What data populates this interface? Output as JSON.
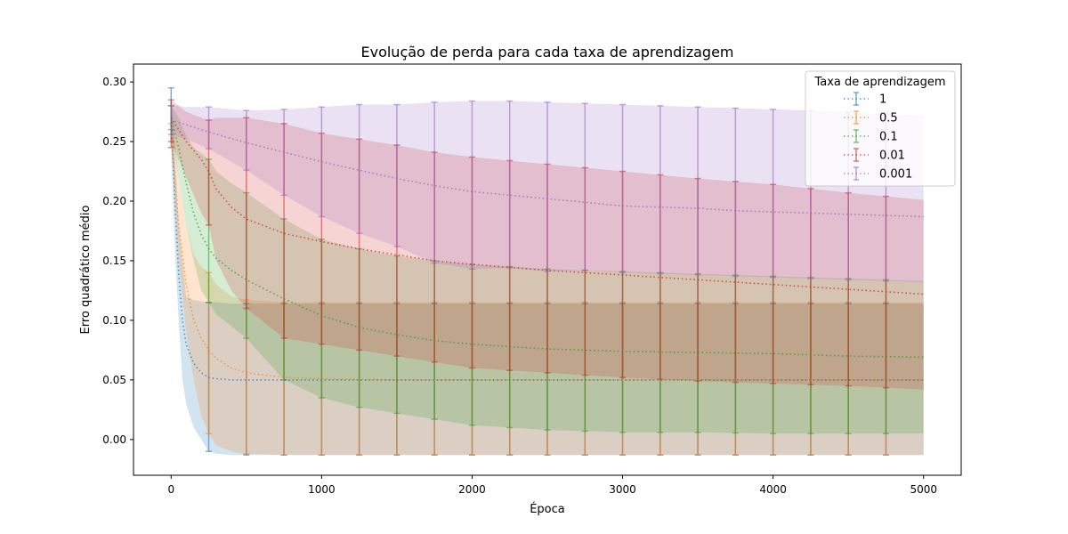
{
  "chart_data": {
    "type": "line",
    "title": "Evolução de perda para cada taxa de aprendizagem",
    "xlabel": "Época",
    "ylabel": "Erro quadrático médio",
    "xlim": [
      -250,
      5250
    ],
    "ylim": [
      -0.03,
      0.315
    ],
    "xticks": [
      0,
      1000,
      2000,
      3000,
      4000,
      5000
    ],
    "yticks": [
      0.0,
      0.05,
      0.1,
      0.15,
      0.2,
      0.25,
      0.3
    ],
    "ytick_labels": [
      "0.00",
      "0.05",
      "0.10",
      "0.15",
      "0.20",
      "0.25",
      "0.30"
    ],
    "grid": false,
    "legend": {
      "title": "Taxa de aprendizagem",
      "placement": "top-right"
    },
    "errorbar_x": [
      0,
      250,
      500,
      750,
      1000,
      1250,
      1500,
      1750,
      2000,
      2250,
      2500,
      2750,
      3000,
      3250,
      3500,
      3750,
      4000,
      4250,
      4500,
      4750
    ],
    "series": [
      {
        "name": "1",
        "color": "#1f77b4",
        "x": [
          0,
          25,
          50,
          75,
          100,
          150,
          200,
          250,
          300,
          400,
          500,
          750,
          1000,
          1500,
          2000,
          3000,
          4000,
          5000
        ],
        "mean": [
          0.27,
          0.2,
          0.14,
          0.1,
          0.08,
          0.064,
          0.056,
          0.052,
          0.051,
          0.05,
          0.05,
          0.05,
          0.05,
          0.05,
          0.05,
          0.05,
          0.05,
          0.05
        ],
        "lower": [
          0.245,
          0.16,
          0.1,
          0.05,
          0.03,
          0.01,
          0.0,
          -0.01,
          -0.012,
          -0.013,
          -0.013,
          -0.013,
          -0.013,
          -0.013,
          -0.013,
          -0.013,
          -0.013,
          -0.013
        ],
        "upper": [
          0.295,
          0.24,
          0.18,
          0.15,
          0.12,
          0.117,
          0.116,
          0.115,
          0.115,
          0.114,
          0.114,
          0.114,
          0.114,
          0.114,
          0.114,
          0.114,
          0.114,
          0.114
        ]
      },
      {
        "name": "0.5",
        "color": "#ff7f0e",
        "x": [
          0,
          25,
          50,
          100,
          150,
          200,
          250,
          300,
          400,
          500,
          750,
          1000,
          1500,
          2000,
          3000,
          4000,
          5000
        ],
        "mean": [
          0.255,
          0.22,
          0.18,
          0.13,
          0.1,
          0.085,
          0.075,
          0.068,
          0.06,
          0.056,
          0.052,
          0.051,
          0.05,
          0.05,
          0.05,
          0.05,
          0.05
        ],
        "lower": [
          0.245,
          0.2,
          0.15,
          0.09,
          0.05,
          0.02,
          0.005,
          -0.005,
          -0.01,
          -0.012,
          -0.013,
          -0.013,
          -0.013,
          -0.013,
          -0.013,
          -0.013,
          -0.013
        ],
        "upper": [
          0.265,
          0.25,
          0.22,
          0.18,
          0.155,
          0.145,
          0.14,
          0.13,
          0.12,
          0.117,
          0.115,
          0.115,
          0.115,
          0.115,
          0.115,
          0.115,
          0.115
        ]
      },
      {
        "name": "0.1",
        "color": "#2ca02c",
        "x": [
          0,
          50,
          100,
          150,
          200,
          250,
          300,
          400,
          500,
          750,
          1000,
          1250,
          1500,
          1750,
          2000,
          2500,
          3000,
          3500,
          4000,
          4500,
          5000
        ],
        "mean": [
          0.27,
          0.245,
          0.215,
          0.19,
          0.172,
          0.16,
          0.152,
          0.142,
          0.134,
          0.118,
          0.104,
          0.094,
          0.088,
          0.083,
          0.08,
          0.076,
          0.074,
          0.073,
          0.072,
          0.07,
          0.069
        ],
        "lower": [
          0.26,
          0.22,
          0.18,
          0.15,
          0.125,
          0.115,
          0.105,
          0.095,
          0.085,
          0.05,
          0.035,
          0.027,
          0.022,
          0.017,
          0.012,
          0.008,
          0.006,
          0.006,
          0.005,
          0.005,
          0.005
        ],
        "upper": [
          0.28,
          0.27,
          0.255,
          0.245,
          0.24,
          0.235,
          0.225,
          0.215,
          0.207,
          0.185,
          0.168,
          0.16,
          0.154,
          0.15,
          0.147,
          0.143,
          0.141,
          0.139,
          0.137,
          0.135,
          0.133
        ]
      },
      {
        "name": "0.01",
        "color": "#d62728",
        "x": [
          0,
          50,
          100,
          200,
          250,
          300,
          400,
          500,
          750,
          1000,
          1250,
          1500,
          1750,
          2000,
          2500,
          3000,
          3500,
          4000,
          4500,
          5000
        ],
        "mean": [
          0.27,
          0.26,
          0.25,
          0.235,
          0.225,
          0.21,
          0.195,
          0.185,
          0.173,
          0.166,
          0.16,
          0.155,
          0.15,
          0.147,
          0.142,
          0.138,
          0.134,
          0.13,
          0.126,
          0.122
        ],
        "lower": [
          0.25,
          0.235,
          0.22,
          0.19,
          0.18,
          0.15,
          0.125,
          0.11,
          0.085,
          0.08,
          0.075,
          0.07,
          0.065,
          0.06,
          0.056,
          0.052,
          0.049,
          0.047,
          0.045,
          0.042
        ],
        "upper": [
          0.285,
          0.28,
          0.275,
          0.27,
          0.268,
          0.27,
          0.27,
          0.27,
          0.265,
          0.257,
          0.252,
          0.247,
          0.241,
          0.237,
          0.231,
          0.225,
          0.219,
          0.214,
          0.207,
          0.201
        ]
      },
      {
        "name": "0.001",
        "color": "#9467bd",
        "x": [
          0,
          50,
          100,
          250,
          500,
          750,
          1000,
          1250,
          1500,
          1750,
          2000,
          2250,
          2500,
          2750,
          3000,
          3250,
          3500,
          3750,
          4000,
          4250,
          4500,
          4750,
          5000
        ],
        "mean": [
          0.268,
          0.266,
          0.264,
          0.258,
          0.249,
          0.241,
          0.233,
          0.226,
          0.219,
          0.213,
          0.208,
          0.205,
          0.202,
          0.199,
          0.196,
          0.195,
          0.194,
          0.192,
          0.191,
          0.19,
          0.189,
          0.188,
          0.187
        ],
        "lower": [
          0.256,
          0.254,
          0.252,
          0.244,
          0.226,
          0.205,
          0.187,
          0.173,
          0.162,
          0.148,
          0.143,
          0.144,
          0.141,
          0.142,
          0.14,
          0.139,
          0.138,
          0.137,
          0.136,
          0.135,
          0.134,
          0.133,
          0.132
        ],
        "upper": [
          0.28,
          0.28,
          0.279,
          0.279,
          0.276,
          0.277,
          0.279,
          0.281,
          0.281,
          0.283,
          0.284,
          0.284,
          0.283,
          0.282,
          0.281,
          0.28,
          0.279,
          0.278,
          0.277,
          0.276,
          0.275,
          0.273,
          0.272
        ]
      }
    ]
  }
}
